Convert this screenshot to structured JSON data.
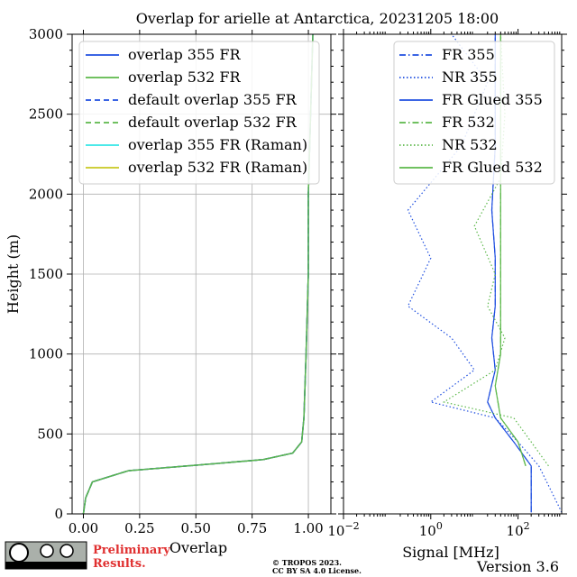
{
  "title": "Overlap for arielle at Antarctica, 20231205 18:00",
  "colors": {
    "blue": "#1f4fe0",
    "green": "#5cb84a",
    "cyan": "#33e6e6",
    "yellow": "#c8c820",
    "grid": "#b0b0b0"
  },
  "chart_data": [
    {
      "type": "line",
      "panel": "left",
      "xlabel": "Overlap",
      "ylabel": "Height (m)",
      "xlim": [
        -0.05,
        1.1
      ],
      "ylim": [
        0,
        3000
      ],
      "xticks": [
        "0.00",
        "0.25",
        "0.50",
        "0.75",
        "1.00"
      ],
      "yticks": [
        "0",
        "500",
        "1000",
        "1500",
        "2000",
        "2500",
        "3000"
      ],
      "grid": true,
      "legend_position": "upper-left",
      "series": [
        {
          "name": "overlap 355 FR",
          "style": "solid",
          "color": "blue",
          "points": [
            [
              0.0,
              0
            ],
            [
              0.01,
              100
            ],
            [
              0.04,
              200
            ],
            [
              0.2,
              270
            ],
            [
              0.55,
              310
            ],
            [
              0.8,
              340
            ],
            [
              0.93,
              380
            ],
            [
              0.97,
              450
            ],
            [
              0.98,
              600
            ],
            [
              0.99,
              1000
            ],
            [
              1.0,
              1500
            ],
            [
              1.0,
              2000
            ],
            [
              1.01,
              2500
            ],
            [
              1.02,
              3000
            ]
          ]
        },
        {
          "name": "overlap 532 FR",
          "style": "solid",
          "color": "green",
          "points": [
            [
              0.0,
              0
            ],
            [
              0.01,
              100
            ],
            [
              0.04,
              200
            ],
            [
              0.2,
              270
            ],
            [
              0.55,
              310
            ],
            [
              0.8,
              340
            ],
            [
              0.93,
              380
            ],
            [
              0.97,
              450
            ],
            [
              0.98,
              600
            ],
            [
              0.99,
              1000
            ],
            [
              1.0,
              1500
            ],
            [
              1.0,
              2000
            ],
            [
              1.01,
              2500
            ],
            [
              1.02,
              3000
            ]
          ]
        },
        {
          "name": "default overlap 355 FR",
          "style": "dashed",
          "color": "blue",
          "points": [
            [
              0.0,
              0
            ],
            [
              0.01,
              100
            ],
            [
              0.04,
              200
            ],
            [
              0.2,
              270
            ],
            [
              0.55,
              310
            ],
            [
              0.8,
              340
            ],
            [
              0.93,
              380
            ],
            [
              0.97,
              450
            ],
            [
              0.98,
              600
            ],
            [
              0.99,
              1000
            ],
            [
              1.0,
              1500
            ],
            [
              1.0,
              2000
            ],
            [
              1.01,
              2500
            ],
            [
              1.02,
              3000
            ]
          ]
        },
        {
          "name": "default overlap 532 FR",
          "style": "dashed",
          "color": "green",
          "points": [
            [
              0.0,
              0
            ],
            [
              0.01,
              100
            ],
            [
              0.04,
              200
            ],
            [
              0.2,
              270
            ],
            [
              0.55,
              310
            ],
            [
              0.8,
              340
            ],
            [
              0.93,
              380
            ],
            [
              0.97,
              450
            ],
            [
              0.98,
              600
            ],
            [
              0.99,
              1000
            ],
            [
              1.0,
              1500
            ],
            [
              1.0,
              2000
            ],
            [
              1.01,
              2500
            ],
            [
              1.02,
              3000
            ]
          ]
        },
        {
          "name": "overlap 355 FR (Raman)",
          "style": "solid",
          "color": "cyan",
          "points": []
        },
        {
          "name": "overlap 532 FR (Raman)",
          "style": "solid",
          "color": "yellow",
          "points": []
        }
      ]
    },
    {
      "type": "line",
      "panel": "right",
      "xlabel": "Signal [MHz]",
      "xscale": "log",
      "xlim": [
        0.01,
        1000
      ],
      "ylim": [
        0,
        3000
      ],
      "xticks": [
        "10−2",
        "100",
        "102"
      ],
      "xtick_exponents": [
        -2,
        0,
        2
      ],
      "legend_position": "upper-right",
      "series": [
        {
          "name": "FR 355",
          "style": "dashdot",
          "color": "blue",
          "points": [
            [
              200,
              10
            ],
            [
              200,
              300
            ],
            [
              80,
              450
            ],
            [
              30,
              600
            ],
            [
              20,
              700
            ],
            [
              30,
              900
            ],
            [
              25,
              1100
            ],
            [
              30,
              1300
            ],
            [
              30,
              1600
            ],
            [
              25,
              1900
            ],
            [
              30,
              2300
            ],
            [
              30,
              2700
            ],
            [
              30,
              3000
            ]
          ]
        },
        {
          "name": "NR 355",
          "style": "dotted",
          "color": "blue",
          "points": [
            [
              1000,
              10
            ],
            [
              300,
              300
            ],
            [
              100,
              450
            ],
            [
              30,
              600
            ],
            [
              1,
              700
            ],
            [
              10,
              900
            ],
            [
              3,
              1100
            ],
            [
              0.3,
              1300
            ],
            [
              1,
              1600
            ],
            [
              0.3,
              1900
            ],
            [
              5,
              2300
            ],
            [
              20,
              2700
            ],
            [
              3,
              3000
            ]
          ]
        },
        {
          "name": "FR Glued 355",
          "style": "solid",
          "color": "blue",
          "points": [
            [
              200,
              10
            ],
            [
              200,
              300
            ],
            [
              80,
              450
            ],
            [
              30,
              600
            ],
            [
              20,
              700
            ],
            [
              30,
              900
            ],
            [
              25,
              1100
            ],
            [
              30,
              1300
            ],
            [
              30,
              1600
            ],
            [
              25,
              1900
            ],
            [
              30,
              2300
            ],
            [
              30,
              2700
            ],
            [
              30,
              3000
            ]
          ]
        },
        {
          "name": "FR 532",
          "style": "dashdot",
          "color": "green",
          "points": [
            [
              150,
              300
            ],
            [
              100,
              450
            ],
            [
              40,
              600
            ],
            [
              30,
              800
            ],
            [
              40,
              1000
            ],
            [
              40,
              1200
            ],
            [
              40,
              1500
            ],
            [
              40,
              1800
            ],
            [
              40,
              2100
            ],
            [
              40,
              2500
            ],
            [
              40,
              3000
            ]
          ]
        },
        {
          "name": "NR 532",
          "style": "dotted",
          "color": "green",
          "points": [
            [
              500,
              300
            ],
            [
              200,
              450
            ],
            [
              80,
              600
            ],
            [
              2,
              700
            ],
            [
              30,
              900
            ],
            [
              50,
              1100
            ],
            [
              20,
              1300
            ],
            [
              30,
              1500
            ],
            [
              10,
              1800
            ],
            [
              40,
              2100
            ],
            [
              50,
              2500
            ],
            [
              40,
              3000
            ]
          ]
        },
        {
          "name": "FR Glued 532",
          "style": "solid",
          "color": "green",
          "points": [
            [
              150,
              300
            ],
            [
              100,
              450
            ],
            [
              40,
              600
            ],
            [
              30,
              800
            ],
            [
              40,
              1000
            ],
            [
              40,
              1200
            ],
            [
              40,
              1500
            ],
            [
              40,
              1800
            ],
            [
              40,
              2100
            ],
            [
              40,
              2500
            ],
            [
              40,
              3000
            ]
          ]
        }
      ]
    }
  ],
  "footer": {
    "license_badge_text": "cc BY SA",
    "preliminary_line1": "Preliminary",
    "preliminary_line2": "Results.",
    "copyright_line1": "© TROPOS 2023.",
    "copyright_line2": "CC BY SA 4.0 License.",
    "version": "Version 3.6"
  }
}
